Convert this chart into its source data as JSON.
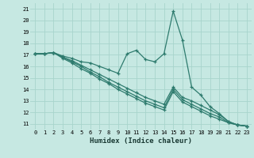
{
  "bg_color": "#c6e8e2",
  "grid_color": "#a8d4cc",
  "line_color": "#2e7b6e",
  "xlabel": "Humidex (Indice chaleur)",
  "xlim": [
    -0.5,
    23.5
  ],
  "ylim": [
    10.5,
    21.5
  ],
  "xticks": [
    0,
    1,
    2,
    3,
    4,
    5,
    6,
    7,
    8,
    9,
    10,
    11,
    12,
    13,
    14,
    15,
    16,
    17,
    18,
    19,
    20,
    21,
    22,
    23
  ],
  "yticks": [
    11,
    12,
    13,
    14,
    15,
    16,
    17,
    18,
    19,
    20,
    21
  ],
  "line1_x": [
    0,
    1,
    2,
    3,
    4,
    5,
    6,
    7,
    8,
    9,
    10,
    11,
    12,
    13,
    14,
    15,
    16,
    17,
    18,
    19,
    20,
    21,
    22,
    23
  ],
  "line1_y": [
    17.1,
    17.1,
    17.2,
    16.9,
    16.7,
    16.4,
    16.3,
    16.0,
    15.7,
    15.4,
    17.1,
    17.4,
    16.6,
    16.4,
    17.1,
    20.8,
    18.3,
    14.2,
    13.5,
    12.5,
    11.9,
    11.2,
    10.9,
    10.8
  ],
  "line2_x": [
    0,
    1,
    2,
    3,
    4,
    5,
    6,
    7,
    8,
    9,
    10,
    11,
    12,
    13,
    14,
    15,
    16,
    17,
    18,
    19,
    20,
    21,
    22,
    23
  ],
  "line2_y": [
    17.1,
    17.1,
    17.2,
    16.8,
    16.5,
    16.1,
    15.7,
    15.3,
    14.9,
    14.5,
    14.1,
    13.7,
    13.3,
    13.0,
    12.7,
    14.2,
    13.3,
    13.0,
    12.6,
    12.2,
    11.8,
    11.2,
    10.9,
    10.8
  ],
  "line3_x": [
    0,
    1,
    2,
    3,
    4,
    5,
    6,
    7,
    8,
    9,
    10,
    11,
    12,
    13,
    14,
    15,
    16,
    17,
    18,
    19,
    20,
    21,
    22,
    23
  ],
  "line3_y": [
    17.1,
    17.1,
    17.2,
    16.8,
    16.4,
    16.0,
    15.5,
    15.1,
    14.6,
    14.2,
    13.8,
    13.4,
    13.0,
    12.7,
    12.4,
    14.0,
    13.1,
    12.7,
    12.3,
    11.9,
    11.6,
    11.1,
    10.9,
    10.8
  ],
  "line4_x": [
    0,
    1,
    2,
    3,
    4,
    5,
    6,
    7,
    8,
    9,
    10,
    11,
    12,
    13,
    14,
    15,
    16,
    17,
    18,
    19,
    20,
    21,
    22,
    23
  ],
  "line4_y": [
    17.1,
    17.1,
    17.2,
    16.7,
    16.3,
    15.8,
    15.4,
    14.9,
    14.5,
    14.0,
    13.6,
    13.2,
    12.8,
    12.5,
    12.2,
    13.8,
    12.9,
    12.5,
    12.1,
    11.7,
    11.4,
    11.1,
    10.9,
    10.8
  ]
}
